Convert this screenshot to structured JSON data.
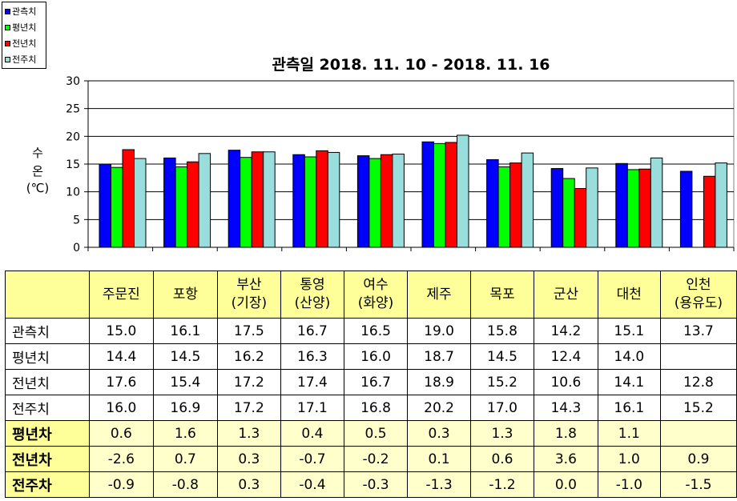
{
  "legend": [
    {
      "label": "관측치",
      "color": "#0000ff"
    },
    {
      "label": "평년치",
      "color": "#00ff00"
    },
    {
      "label": "전년치",
      "color": "#ff0000"
    },
    {
      "label": "전주치",
      "color": "#99dddd"
    }
  ],
  "chart_data": {
    "type": "bar",
    "title": "관측일 2018. 11. 10 - 2018. 11. 16",
    "ylabel": [
      "수",
      "온",
      "(℃)"
    ],
    "ylim": [
      0,
      30
    ],
    "yticks": [
      0,
      5,
      10,
      15,
      20,
      25,
      30
    ],
    "grid": true,
    "legend_position": "top-left",
    "categories": [
      "주문진",
      "포항",
      "부산(기장)",
      "통영(산양)",
      "여수(화양)",
      "제주",
      "목포",
      "군산",
      "대천",
      "인천(용유도)"
    ],
    "series": [
      {
        "name": "관측치",
        "color": "#0000ff",
        "values": [
          15.0,
          16.1,
          17.5,
          16.7,
          16.5,
          19.0,
          15.8,
          14.2,
          15.1,
          13.7
        ]
      },
      {
        "name": "평년치",
        "color": "#00ff00",
        "values": [
          14.4,
          14.5,
          16.2,
          16.3,
          16.0,
          18.7,
          14.5,
          12.4,
          14.0,
          null
        ]
      },
      {
        "name": "전년치",
        "color": "#ff0000",
        "values": [
          17.6,
          15.4,
          17.2,
          17.4,
          16.7,
          18.9,
          15.2,
          10.6,
          14.1,
          12.8
        ]
      },
      {
        "name": "전주치",
        "color": "#99dddd",
        "values": [
          16.0,
          16.9,
          17.2,
          17.1,
          16.8,
          20.2,
          17.0,
          14.3,
          16.1,
          15.2
        ]
      }
    ]
  },
  "table": {
    "headers": [
      [
        "주문진"
      ],
      [
        "포항"
      ],
      [
        "부산",
        "(기장)"
      ],
      [
        "통영",
        "(산양)"
      ],
      [
        "여수",
        "(화양)"
      ],
      [
        "제주"
      ],
      [
        "목포"
      ],
      [
        "군산"
      ],
      [
        "대천"
      ],
      [
        "인천",
        "(용유도)"
      ]
    ],
    "rows": [
      {
        "label": "관측치",
        "kind": "value",
        "cells": [
          "15.0",
          "16.1",
          "17.5",
          "16.7",
          "16.5",
          "19.0",
          "15.8",
          "14.2",
          "15.1",
          "13.7"
        ]
      },
      {
        "label": "평년치",
        "kind": "value",
        "cells": [
          "14.4",
          "14.5",
          "16.2",
          "16.3",
          "16.0",
          "18.7",
          "14.5",
          "12.4",
          "14.0",
          ""
        ]
      },
      {
        "label": "전년치",
        "kind": "value",
        "cells": [
          "17.6",
          "15.4",
          "17.2",
          "17.4",
          "16.7",
          "18.9",
          "15.2",
          "10.6",
          "14.1",
          "12.8"
        ]
      },
      {
        "label": "전주치",
        "kind": "value",
        "cells": [
          "16.0",
          "16.9",
          "17.2",
          "17.1",
          "16.8",
          "20.2",
          "17.0",
          "14.3",
          "16.1",
          "15.2"
        ]
      },
      {
        "label": "평년차",
        "kind": "diff",
        "cells": [
          "0.6",
          "1.6",
          "1.3",
          "0.4",
          "0.5",
          "0.3",
          "1.3",
          "1.8",
          "1.1",
          ""
        ]
      },
      {
        "label": "전년차",
        "kind": "diff",
        "cells": [
          "-2.6",
          "0.7",
          "0.3",
          "-0.7",
          "-0.2",
          "0.1",
          "0.6",
          "3.6",
          "1.0",
          "0.9"
        ]
      },
      {
        "label": "전주차",
        "kind": "diff",
        "cells": [
          "-0.9",
          "-0.8",
          "0.3",
          "-0.4",
          "-0.3",
          "-1.3",
          "-1.2",
          "0.0",
          "-1.0",
          "-1.5"
        ]
      }
    ]
  }
}
